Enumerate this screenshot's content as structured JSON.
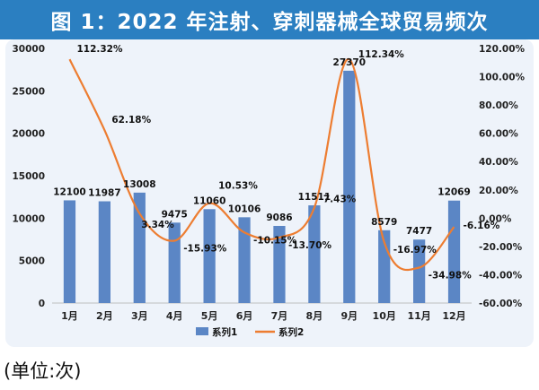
{
  "title": "图 1：2022 年注射、穿刺器械全球贸易频次",
  "unit_note": "(单位:次)",
  "chart_data": {
    "type": "bar",
    "categories": [
      "1月",
      "2月",
      "3月",
      "4月",
      "5月",
      "6月",
      "7月",
      "8月",
      "9月",
      "10月",
      "11月",
      "12月"
    ],
    "series": [
      {
        "name": "系列1",
        "type": "bar",
        "axis": "left",
        "color": "#5b86c5",
        "values": [
          12100,
          11987,
          13008,
          9475,
          11060,
          10106,
          9086,
          11511,
          27370,
          8579,
          7477,
          12069
        ],
        "labels": [
          "12100",
          "11987",
          "13008",
          "9475",
          "11060",
          "10106",
          "9086",
          "11511",
          "27370",
          "8579",
          "7477",
          "12069"
        ]
      },
      {
        "name": "系列2",
        "type": "line",
        "axis": "right",
        "color": "#ed7d31",
        "values": [
          112.32,
          62.18,
          3.34,
          -15.93,
          10.53,
          -10.15,
          -13.7,
          7.43,
          112.34,
          -16.97,
          -34.98,
          -6.16
        ],
        "labels": [
          "112.32%",
          "62.18%",
          "3.34%",
          "-15.93%",
          "10.53%",
          "-10.15%",
          "-13.70%",
          "7.43%",
          "112.34%",
          "-16.97%",
          "-34.98%",
          "-6.16%"
        ]
      }
    ],
    "y_left": {
      "min": 0,
      "max": 30000,
      "ticks": [
        "0",
        "5000",
        "10000",
        "15000",
        "20000",
        "25000",
        "30000"
      ]
    },
    "y_right": {
      "min": -60,
      "max": 120,
      "ticks": [
        "-60.00%",
        "-40.00%",
        "-20.00%",
        "0.00%",
        "20.00%",
        "40.00%",
        "60.00%",
        "80.00%",
        "100.00%",
        "120.00%"
      ]
    },
    "grid": false,
    "legend_position": "bottom"
  }
}
